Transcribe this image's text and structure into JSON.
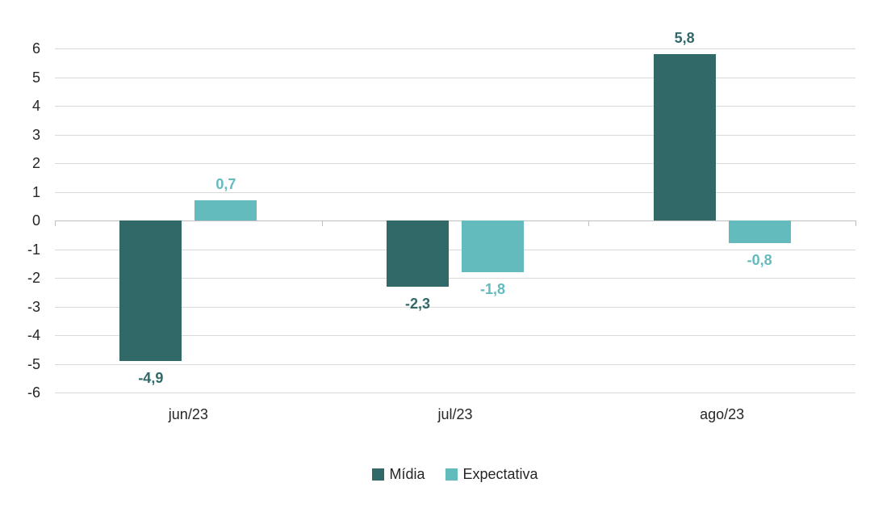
{
  "chart_data": {
    "type": "bar",
    "title": "",
    "xlabel": "",
    "ylabel": "",
    "categories": [
      "jun/23",
      "jul/23",
      "ago/23"
    ],
    "series": [
      {
        "name": "Mídia",
        "color": "#316868",
        "values": [
          -4.9,
          -2.3,
          5.8
        ],
        "labels": [
          "-4,9",
          "-2,3",
          "5,8"
        ]
      },
      {
        "name": "Expectativa",
        "color": "#63BBBD",
        "values": [
          0.7,
          -1.8,
          -0.8
        ],
        "labels": [
          "0,7",
          "-1,8",
          "-0,8"
        ]
      }
    ],
    "ylim": [
      -6,
      6
    ],
    "ytick_step": 1,
    "yticks": [
      6,
      5,
      4,
      3,
      2,
      1,
      0,
      -1,
      -2,
      -3,
      -4,
      -5,
      -6
    ],
    "grid": true,
    "gridline_color": "#d9d9d9",
    "axis_line_color": "#bfbfbf",
    "tick_label_color": "#262626",
    "legend_position": "bottom"
  }
}
